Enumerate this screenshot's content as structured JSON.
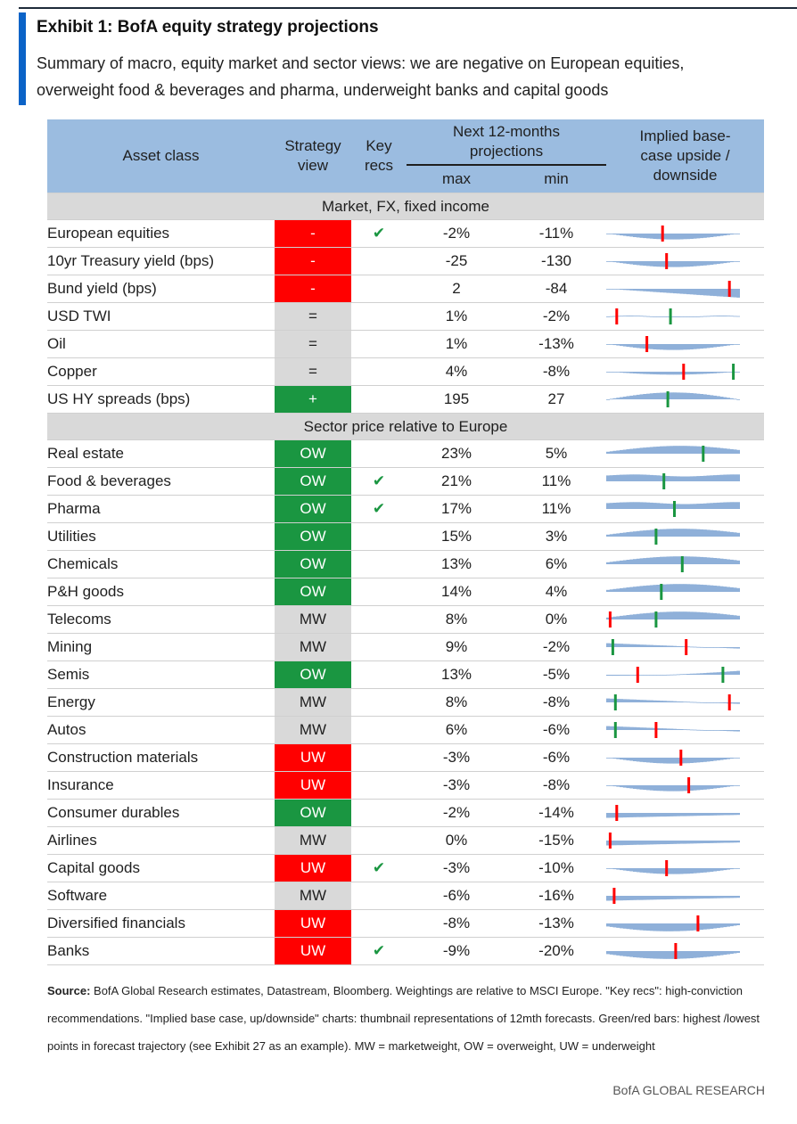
{
  "exhibit": {
    "title": "Exhibit 1: BofA equity strategy projections",
    "subtitle_line1": "Summary of macro, equity market and sector views: we are negative on European equities,",
    "subtitle_line2": "overweight food & beverages and pharma, underweight banks and capital goods"
  },
  "table": {
    "headers": {
      "asset_class": "Asset class",
      "strategy_view_1": "Strategy",
      "strategy_view_2": "view",
      "key_recs_1": "Key",
      "key_recs_2": "recs",
      "projections_1": "Next 12-months",
      "projections_2": "projections",
      "max": "max",
      "min": "min",
      "implied_1": "Implied base-",
      "implied_2": "case upside /",
      "implied_3": "downside"
    },
    "colors": {
      "header_bg": "#9bbce0",
      "section_bg": "#d9d9d9",
      "negative": "#ff0000",
      "positive": "#1a9641",
      "neutral": "#d9d9d9",
      "sparkline": "#8fb0d9",
      "check": "#1a9641"
    },
    "sections": [
      {
        "title": "Market, FX, fixed income",
        "rows": [
          {
            "name": "European equities",
            "view": "-",
            "view_class": "neg",
            "key_rec": "✔",
            "max": "-2%",
            "min": "-11%",
            "marker": 0.42,
            "marker_color": "red",
            "shape": "dip"
          },
          {
            "name": "10yr Treasury yield (bps)",
            "view": "-",
            "view_class": "neg",
            "key_rec": "",
            "max": "-25",
            "min": "-130",
            "marker": 0.45,
            "marker_color": "red",
            "shape": "dip"
          },
          {
            "name": "Bund yield (bps)",
            "view": "-",
            "view_class": "neg",
            "key_rec": "",
            "max": "2",
            "min": "-84",
            "marker": 0.93,
            "marker_color": "red",
            "shape": "descend"
          },
          {
            "name": "USD TWI",
            "view": "=",
            "view_class": "neu",
            "key_rec": "",
            "max": "1%",
            "min": "-2%",
            "marker": 0.07,
            "marker_color": "red",
            "marker2": 0.48,
            "marker2_color": "green",
            "shape": "flat"
          },
          {
            "name": "Oil",
            "view": "=",
            "view_class": "neu",
            "key_rec": "",
            "max": "1%",
            "min": "-13%",
            "marker": 0.3,
            "marker_color": "red",
            "shape": "dip"
          },
          {
            "name": "Copper",
            "view": "=",
            "view_class": "neu",
            "key_rec": "",
            "max": "4%",
            "min": "-8%",
            "marker": 0.58,
            "marker_color": "red",
            "marker2": 0.96,
            "marker2_color": "green",
            "shape": "smalldip"
          },
          {
            "name": "US HY spreads (bps)",
            "view": "+",
            "view_class": "pos",
            "key_rec": "",
            "max": "195",
            "min": "27",
            "marker": 0.46,
            "marker_color": "green",
            "shape": "hump"
          }
        ]
      },
      {
        "title": "Sector price relative to Europe",
        "rows": [
          {
            "name": "Real estate",
            "view": "OW",
            "view_class": "ow",
            "key_rec": "",
            "max": "23%",
            "min": "5%",
            "marker": 0.73,
            "marker_color": "green",
            "shape": "rise"
          },
          {
            "name": "Food & beverages",
            "view": "OW",
            "view_class": "ow",
            "key_rec": "✔",
            "max": "21%",
            "min": "11%",
            "marker": 0.43,
            "marker_color": "green",
            "shape": "plateau"
          },
          {
            "name": "Pharma",
            "view": "OW",
            "view_class": "ow",
            "key_rec": "✔",
            "max": "17%",
            "min": "11%",
            "marker": 0.51,
            "marker_color": "green",
            "shape": "plateau"
          },
          {
            "name": "Utilities",
            "view": "OW",
            "view_class": "ow",
            "key_rec": "",
            "max": "15%",
            "min": "3%",
            "marker": 0.37,
            "marker_color": "green",
            "shape": "rise"
          },
          {
            "name": "Chemicals",
            "view": "OW",
            "view_class": "ow",
            "key_rec": "",
            "max": "13%",
            "min": "6%",
            "marker": 0.57,
            "marker_color": "green",
            "shape": "rise"
          },
          {
            "name": "P&H goods",
            "view": "OW",
            "view_class": "ow",
            "key_rec": "",
            "max": "14%",
            "min": "4%",
            "marker": 0.41,
            "marker_color": "green",
            "shape": "rise"
          },
          {
            "name": "Telecoms",
            "view": "MW",
            "view_class": "mw",
            "key_rec": "",
            "max": "8%",
            "min": "0%",
            "marker": 0.37,
            "marker_color": "green",
            "marker2": 0.02,
            "marker2_color": "red",
            "shape": "rise"
          },
          {
            "name": "Mining",
            "view": "MW",
            "view_class": "mw",
            "key_rec": "",
            "max": "9%",
            "min": "-2%",
            "marker": 0.04,
            "marker_color": "green",
            "marker2": 0.6,
            "marker2_color": "red",
            "shape": "fall"
          },
          {
            "name": "Semis",
            "view": "OW",
            "view_class": "ow",
            "key_rec": "",
            "max": "13%",
            "min": "-5%",
            "marker": 0.88,
            "marker_color": "green",
            "marker2": 0.23,
            "marker2_color": "red",
            "shape": "late"
          },
          {
            "name": "Energy",
            "view": "MW",
            "view_class": "mw",
            "key_rec": "",
            "max": "8%",
            "min": "-8%",
            "marker": 0.06,
            "marker_color": "green",
            "marker2": 0.93,
            "marker2_color": "red",
            "shape": "fall"
          },
          {
            "name": "Autos",
            "view": "MW",
            "view_class": "mw",
            "key_rec": "",
            "max": "6%",
            "min": "-6%",
            "marker": 0.06,
            "marker_color": "green",
            "marker2": 0.37,
            "marker2_color": "red",
            "shape": "fall"
          },
          {
            "name": "Construction materials",
            "view": "UW",
            "view_class": "uw",
            "key_rec": "",
            "max": "-3%",
            "min": "-6%",
            "marker": 0.56,
            "marker_color": "red",
            "shape": "dip"
          },
          {
            "name": "Insurance",
            "view": "UW",
            "view_class": "uw",
            "key_rec": "",
            "max": "-3%",
            "min": "-8%",
            "marker": 0.62,
            "marker_color": "red",
            "shape": "dip"
          },
          {
            "name": "Consumer durables",
            "view": "OW",
            "view_class": "ow",
            "key_rec": "",
            "max": "-2%",
            "min": "-14%",
            "marker": 0.07,
            "marker_color": "red",
            "shape": "earlydip"
          },
          {
            "name": "Airlines",
            "view": "MW",
            "view_class": "mw",
            "key_rec": "",
            "max": "0%",
            "min": "-15%",
            "marker": 0.02,
            "marker_color": "red",
            "shape": "earlydip"
          },
          {
            "name": "Capital goods",
            "view": "UW",
            "view_class": "uw",
            "key_rec": "✔",
            "max": "-3%",
            "min": "-10%",
            "marker": 0.45,
            "marker_color": "red",
            "shape": "dip"
          },
          {
            "name": "Software",
            "view": "MW",
            "view_class": "mw",
            "key_rec": "",
            "max": "-6%",
            "min": "-16%",
            "marker": 0.05,
            "marker_color": "red",
            "shape": "earlydip"
          },
          {
            "name": "Diversified financials",
            "view": "UW",
            "view_class": "uw",
            "key_rec": "",
            "max": "-8%",
            "min": "-13%",
            "marker": 0.69,
            "marker_color": "red",
            "shape": "deep"
          },
          {
            "name": "Banks",
            "view": "UW",
            "view_class": "uw",
            "key_rec": "✔",
            "max": "-9%",
            "min": "-20%",
            "marker": 0.52,
            "marker_color": "red",
            "shape": "deep"
          }
        ]
      }
    ]
  },
  "source": {
    "label": "Source:",
    "text": " BofA Global Research estimates, Datastream, Bloomberg. Weightings are relative to MSCI Europe. \"Key recs\": high-conviction recommendations. \"Implied base case, up/downside\" charts: thumbnail representations of 12mth forecasts. Green/red bars: highest /lowest points in forecast trajectory (see Exhibit 27 as an example). MW = marketweight, OW = overweight, UW = underweight"
  },
  "brand": "BofA GLOBAL RESEARCH"
}
